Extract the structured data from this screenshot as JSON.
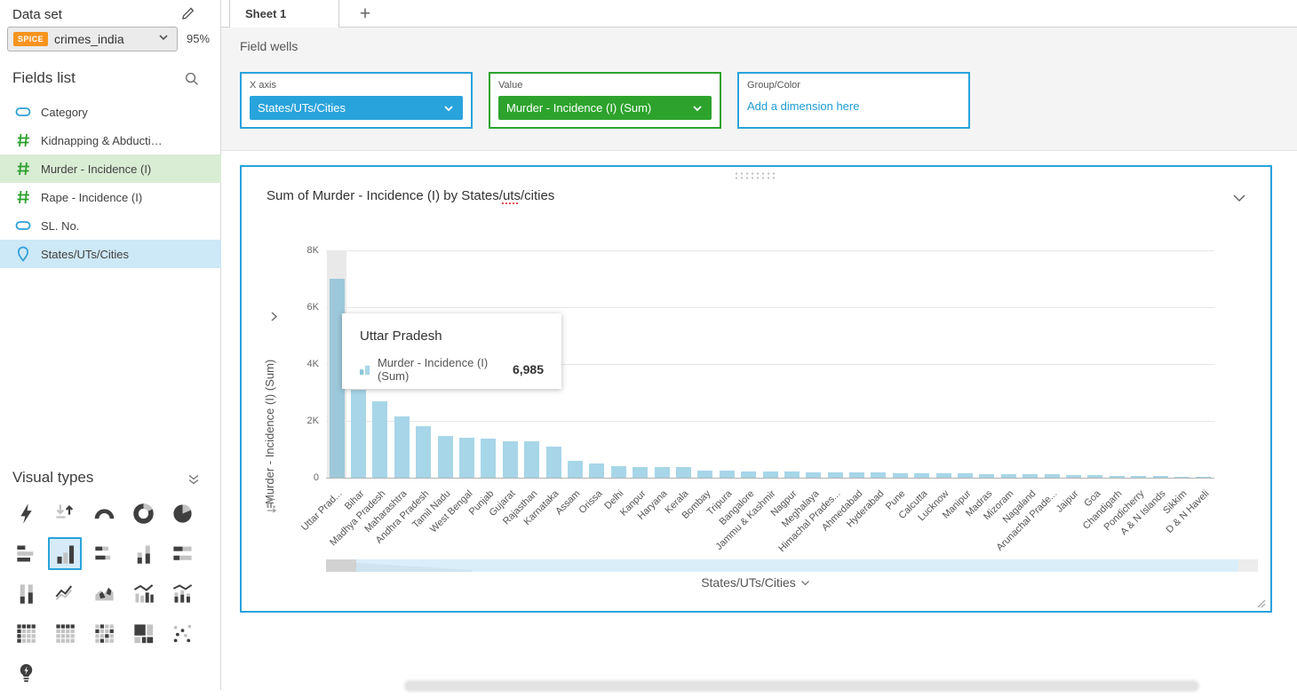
{
  "sidebar": {
    "dataset_label": "Data set",
    "dataset_badge": "SPICE",
    "dataset_name": "crimes_india",
    "dataset_percent": "95%",
    "fields_list_label": "Fields list",
    "fields": [
      {
        "name": "Category",
        "icon": "dimension-icon",
        "highlight": ""
      },
      {
        "name": "Kidnapping & Abducti…",
        "icon": "measure-icon",
        "highlight": ""
      },
      {
        "name": "Murder - Incidence (I)",
        "icon": "measure-icon",
        "highlight": "hl-green"
      },
      {
        "name": "Rape - Incidence (I)",
        "icon": "measure-icon",
        "highlight": ""
      },
      {
        "name": "SL. No.",
        "icon": "dimension-icon",
        "highlight": ""
      },
      {
        "name": "States/UTs/Cities",
        "icon": "geo-icon",
        "highlight": "hl-blue"
      }
    ],
    "visual_types_label": "Visual types",
    "visual_types": [
      {
        "name": "auto-graph"
      },
      {
        "name": "kpi"
      },
      {
        "name": "gauge"
      },
      {
        "name": "donut"
      },
      {
        "name": "pie"
      },
      {
        "name": "horizontal-bar"
      },
      {
        "name": "vertical-bar",
        "selected": true
      },
      {
        "name": "stacked-horizontal-bar"
      },
      {
        "name": "stacked-vertical-bar"
      },
      {
        "name": "stacked100-horizontal-bar"
      },
      {
        "name": "stacked100-vertical-bar"
      },
      {
        "name": "line-chart"
      },
      {
        "name": "area-chart"
      },
      {
        "name": "combo-bar-line"
      },
      {
        "name": "combo-stacked"
      },
      {
        "name": "table"
      },
      {
        "name": "pivot-table"
      },
      {
        "name": "heatmap"
      },
      {
        "name": "treemap"
      },
      {
        "name": "scatter-plot"
      },
      {
        "name": "insight"
      }
    ]
  },
  "tabs": {
    "active_label": "Sheet 1",
    "add_label": "+"
  },
  "field_wells": {
    "section_label": "Field wells",
    "x_axis": {
      "label": "X axis",
      "value": "States/UTs/Cities"
    },
    "value": {
      "label": "Value",
      "value": "Murder - Incidence (I) (Sum)"
    },
    "group_color": {
      "label": "Group/Color",
      "placeholder": "Add a dimension here"
    }
  },
  "visual": {
    "title_prefix": "Sum of Murder - Incidence (I) by States/",
    "title_spell": "uts",
    "title_suffix": "/cities"
  },
  "tooltip": {
    "title": "Uttar Pradesh",
    "series": "Murder - Incidence (I) (Sum)",
    "value": "6,985"
  },
  "chart_data": {
    "type": "bar",
    "title": "Sum of Murder - Incidence (I) by States/uts/cities",
    "xlabel": "States/UTs/Cities",
    "ylabel": "Murder - Incidence (I) (Sum)",
    "ylim": [
      0,
      8000
    ],
    "yticks": [
      "8K",
      "6K",
      "4K",
      "2K",
      "0"
    ],
    "grid": true,
    "bar_color": "#a7d6e8",
    "highlighted_index": 0,
    "highlighted_value_label": "6,985",
    "categories": [
      "Uttar Prad...",
      "Bihar",
      "Madhya Pradesh",
      "Maharashtra",
      "Andhra Pradesh",
      "Tamil Nadu",
      "West Bengal",
      "Punjab",
      "Gujarat",
      "Rajasthan",
      "Karnataka",
      "Assam",
      "Orissa",
      "Delhi",
      "Kanpur",
      "Haryana",
      "Kerala",
      "Bombay",
      "Tripura",
      "Bangalore",
      "Jammu & Kashmir",
      "Nagpur",
      "Meghalaya",
      "Himachal Prades...",
      "Ahmedabad",
      "Hyderabad",
      "Pune",
      "Calcutta",
      "Lucknow",
      "Manipur",
      "Madras",
      "Mizoram",
      "Nagaland",
      "Arunachal Prade...",
      "Jaipur",
      "Goa",
      "Chandigarh",
      "Pondicherry",
      "A & N Islands",
      "Sikkim",
      "D & N Haveli"
    ],
    "values": [
      6985,
      3100,
      2700,
      2150,
      1800,
      1475,
      1400,
      1375,
      1290,
      1285,
      1100,
      600,
      510,
      420,
      380,
      375,
      370,
      260,
      240,
      230,
      220,
      210,
      200,
      190,
      180,
      172,
      165,
      158,
      152,
      145,
      138,
      130,
      122,
      115,
      105,
      85,
      72,
      62,
      52,
      42,
      35
    ]
  }
}
